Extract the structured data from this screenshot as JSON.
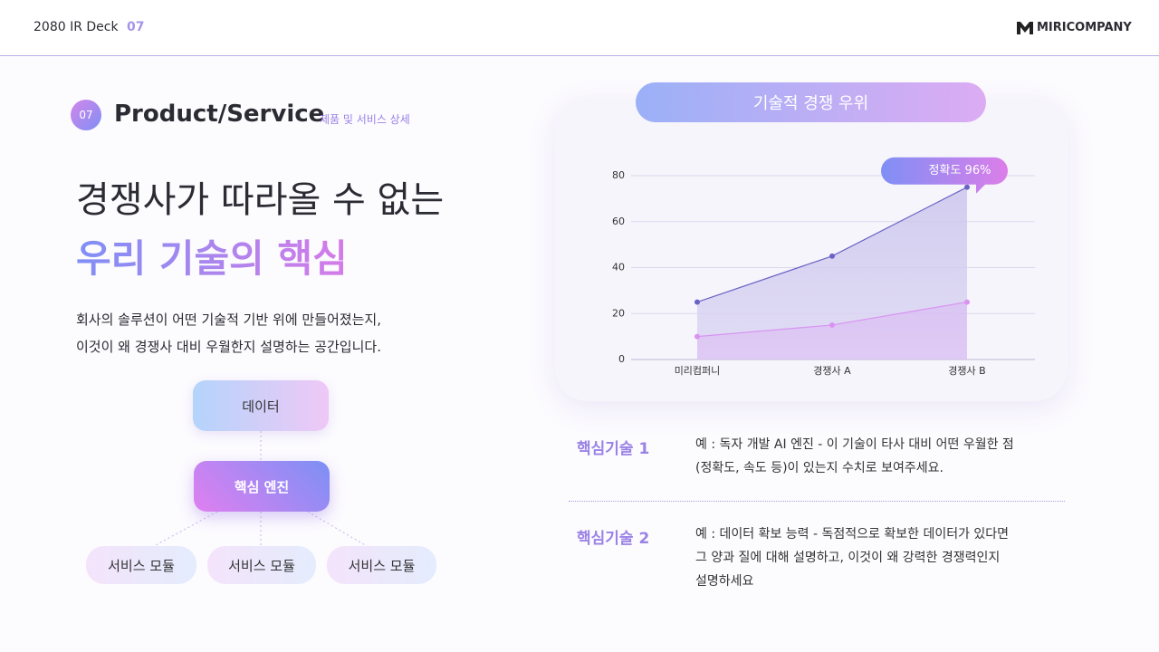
{
  "header": {
    "deck": "2080 IR Deck",
    "page": "07",
    "logo": "MIRICOMPANY"
  },
  "section": {
    "badge": "07",
    "title": "Product/Service",
    "subtitle": "제품 및 서비스 상세"
  },
  "headline": {
    "line1": "경쟁사가 따라올 수 없는",
    "line2": "우리 기술의 핵심"
  },
  "description": [
    "회사의 솔루션이 어떤 기술적 기반 위에 만들어졌는지,",
    "이것이 왜 경쟁사 대비 우월한지 설명하는 공간입니다."
  ],
  "diagram": {
    "nodes": [
      {
        "label": "데이터"
      },
      {
        "label": "핵심 엔진"
      },
      {
        "label": "서비스 모듈"
      },
      {
        "label": "서비스 모듈"
      },
      {
        "label": "서비스 모듈"
      }
    ]
  },
  "chart_data": {
    "type": "line",
    "title": "기술적 경쟁 우위",
    "categories": [
      "미리컴퍼니",
      "경쟁사 A",
      "경쟁사 B"
    ],
    "series": [
      {
        "color": "#6a63c6",
        "values": [
          25,
          45,
          75
        ]
      },
      {
        "color": "#d993f2",
        "values": [
          10,
          15,
          25
        ]
      }
    ],
    "ylim": [
      0,
      80
    ],
    "yticks": [
      0,
      20,
      40,
      60,
      80
    ],
    "grid": true,
    "area": true,
    "annotation": "정확도 96%"
  },
  "tech": [
    {
      "label": "핵심기술 1",
      "lines": [
        "예 : 독자 개발 AI 엔진 - 이 기술이 타사 대비 어떤 우월한 점",
        "(정확도, 속도 등)이 있는지 수치로 보여주세요."
      ]
    },
    {
      "label": "핵심기술 2",
      "lines": [
        "예 : 데이터 확보 능력 - 독점적으로 확보한 데이터가 있다면",
        "그 양과 질에 대해 설명하고, 이것이 왜 강력한 경쟁력인지",
        "설명하세요"
      ]
    }
  ]
}
